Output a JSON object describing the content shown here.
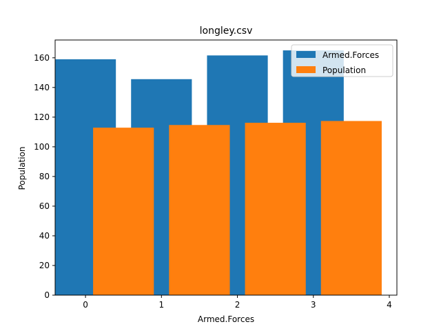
{
  "chart_data": {
    "type": "bar",
    "title": "longley.csv",
    "xlabel": "Armed.Forces",
    "ylabel": "Population",
    "x_ticks": [
      0,
      1,
      2,
      3,
      4
    ],
    "y_ticks": [
      0,
      20,
      40,
      60,
      80,
      100,
      120,
      140,
      160
    ],
    "xlim": [
      -0.4,
      4.1
    ],
    "ylim": [
      0,
      172
    ],
    "grid": false,
    "legend_position": "top-right",
    "series": [
      {
        "name": "Armed.Forces",
        "color": "#1f77b4",
        "x": [
          0,
          1,
          2,
          3
        ],
        "values": [
          159.0,
          145.6,
          161.6,
          165.0
        ]
      },
      {
        "name": "Population",
        "color": "#ff7f0e",
        "x": [
          0.5,
          1.5,
          2.5,
          3.5
        ],
        "values": [
          112.9,
          114.7,
          116.2,
          117.4
        ]
      }
    ]
  }
}
